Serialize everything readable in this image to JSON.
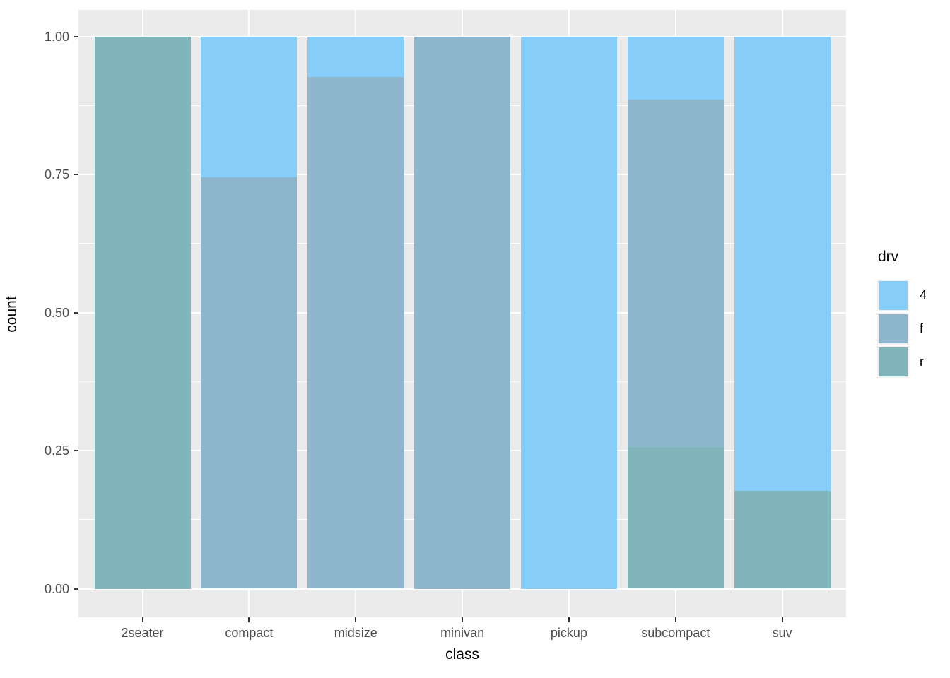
{
  "figure": {
    "background": "#FFFFFF",
    "panel_background": "#EBEBEB",
    "grid_color": "#FFFFFF",
    "axis_text_color": "#4D4D4D",
    "axis_title_color": "#000000",
    "tick_mark_color": "#333333"
  },
  "chart_data": {
    "type": "bar",
    "subtype": "stacked-filled-proportion",
    "title": "",
    "xlabel": "class",
    "ylabel": "count",
    "categories": [
      "2seater",
      "compact",
      "midsize",
      "minivan",
      "pickup",
      "subcompact",
      "suv"
    ],
    "series": [
      {
        "name": "4",
        "color": "#87CDF9",
        "values": [
          0,
          0.2553,
          0.0732,
          0,
          1.0,
          0.1143,
          0.8226
        ]
      },
      {
        "name": "f",
        "color": "#8DB6CD",
        "values": [
          0,
          0.7447,
          0.9268,
          1.0,
          0,
          0.6286,
          0
        ]
      },
      {
        "name": "r",
        "color": "#80B5BB",
        "values": [
          1.0,
          0,
          0,
          0,
          0,
          0.2571,
          0.1774
        ]
      }
    ],
    "stack_order_bottom_to_top": [
      "r",
      "f",
      "4"
    ],
    "ylim": [
      0,
      1
    ],
    "yticks": [
      {
        "value": 0.0,
        "label": "0.00"
      },
      {
        "value": 0.25,
        "label": "0.25"
      },
      {
        "value": 0.5,
        "label": "0.50"
      },
      {
        "value": 0.75,
        "label": "0.75"
      },
      {
        "value": 1.0,
        "label": "1.00"
      }
    ],
    "minor_yticks": [
      0.125,
      0.375,
      0.625,
      0.875
    ],
    "grid": true,
    "legend": {
      "title": "drv",
      "position": "right",
      "entries": [
        {
          "label": "4",
          "color": "#87CDF9"
        },
        {
          "label": "f",
          "color": "#8DB6CD"
        },
        {
          "label": "r",
          "color": "#80B5BB"
        }
      ]
    }
  }
}
